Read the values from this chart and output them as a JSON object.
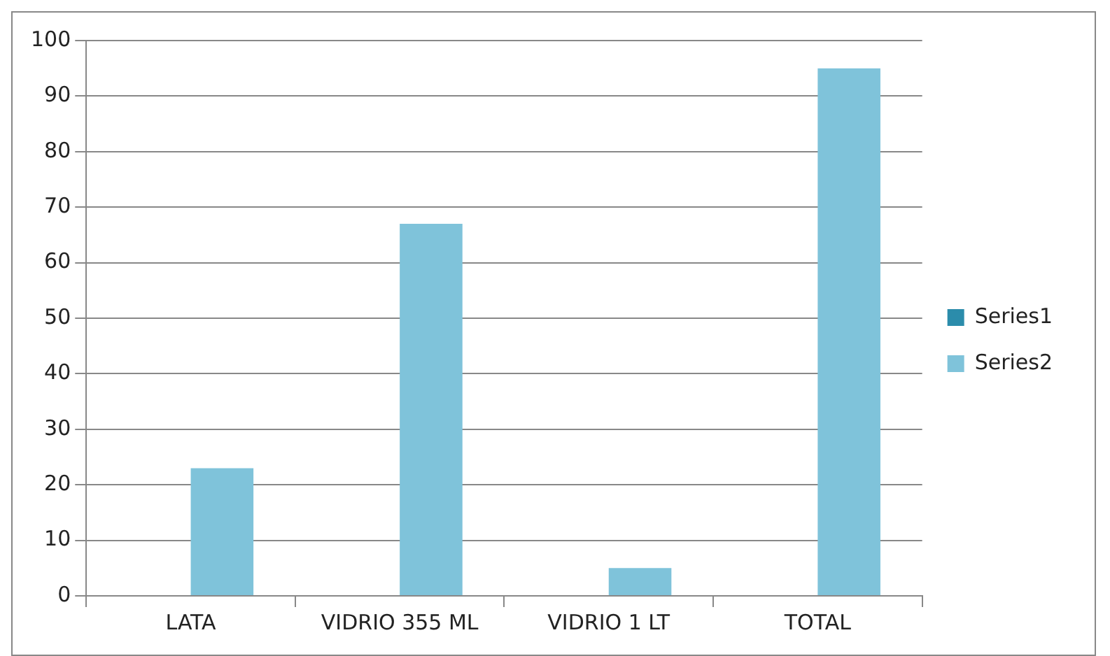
{
  "chart_data": {
    "type": "bar",
    "categories": [
      "LATA",
      "VIDRIO 355 ML",
      "VIDRIO 1 LT",
      "TOTAL"
    ],
    "series": [
      {
        "name": "Series1",
        "color": "#2b8cab",
        "values": [
          null,
          null,
          null,
          null
        ]
      },
      {
        "name": "Series2",
        "color": "#7fc3da",
        "values": [
          23,
          67,
          5,
          95
        ]
      }
    ],
    "ylim": [
      0,
      100
    ],
    "yticks": [
      0,
      10,
      20,
      30,
      40,
      50,
      60,
      70,
      80,
      90,
      100
    ],
    "grid": "y",
    "legend": "right"
  }
}
